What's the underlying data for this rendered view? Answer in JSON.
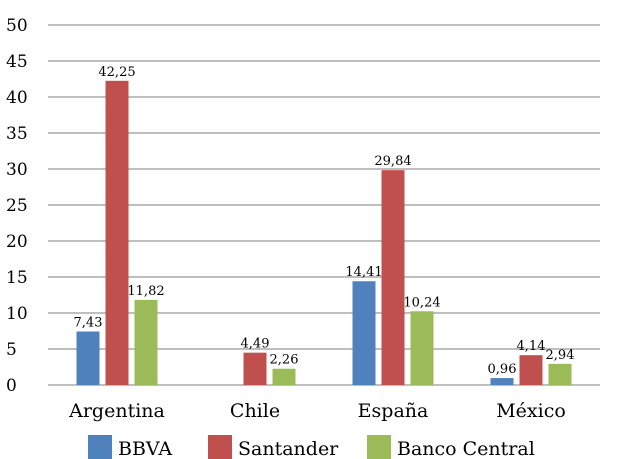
{
  "chart_data": {
    "type": "bar",
    "categories": [
      "Argentina",
      "Chile",
      "España",
      "México"
    ],
    "series": [
      {
        "name": "BBVA",
        "color": "#4f81bd",
        "values": [
          7.43,
          null,
          14.41,
          0.96
        ],
        "labels": [
          "7,43",
          "",
          "14,41",
          "0,96"
        ]
      },
      {
        "name": "Santander",
        "color": "#c0504d",
        "values": [
          42.25,
          4.49,
          29.84,
          4.14
        ],
        "labels": [
          "42,25",
          "4,49",
          "29,84",
          "4,14"
        ]
      },
      {
        "name": "Banco Central",
        "color": "#9bbb59",
        "values": [
          11.82,
          2.26,
          10.24,
          2.94
        ],
        "labels": [
          "11,82",
          "2,26",
          "10,24",
          "2,94"
        ]
      }
    ],
    "ylim": [
      0,
      50
    ],
    "yticks": [
      0,
      5,
      10,
      15,
      20,
      25,
      30,
      35,
      40,
      45,
      50
    ],
    "grid": true,
    "legend": "bottom",
    "title": "",
    "xlabel": "",
    "ylabel": ""
  }
}
